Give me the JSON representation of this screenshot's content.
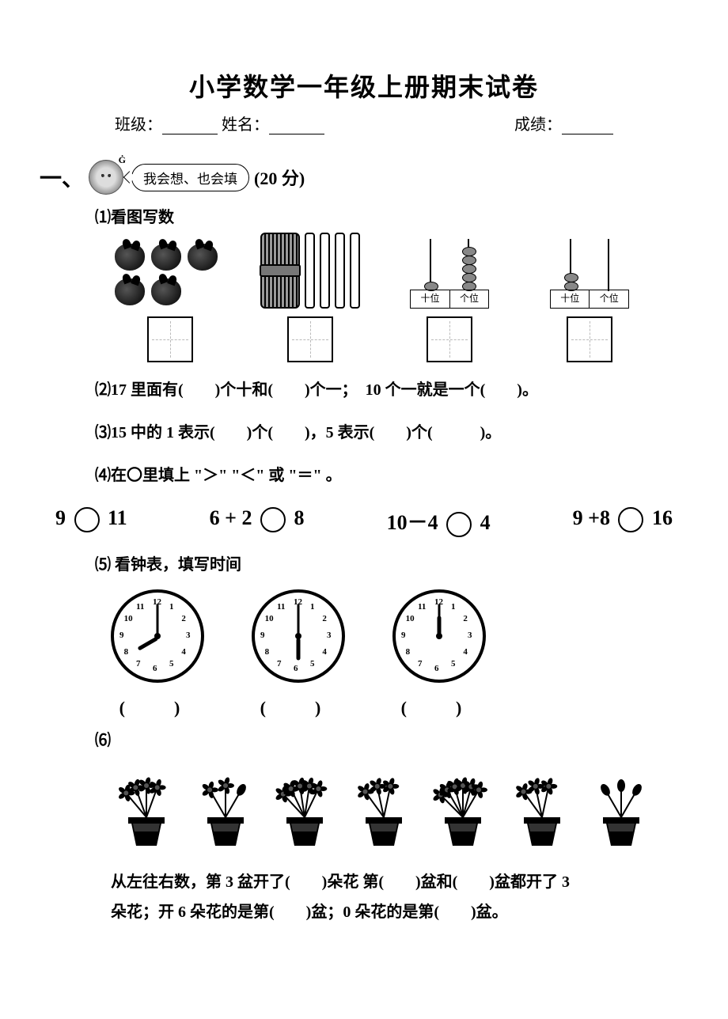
{
  "title": "小学数学一年级上册期末试卷",
  "meta": {
    "class_label": "班级：",
    "name_label": "姓名：",
    "score_label": "成绩："
  },
  "section1": {
    "num": "一、",
    "bubble": "我会想、也会填",
    "points": "(20 分)"
  },
  "q1": {
    "label": "⑴看图写数",
    "abacus_labels": {
      "tens": "十位",
      "ones": "个位"
    }
  },
  "q2": "⑵17 里面有(　　)个十和(　　)个一；　10 个一就是一个(　　)。",
  "q3": "⑶15 中的 1 表示(　　)个(　　)，5 表示(　　)个(　　　)。",
  "q4": {
    "label": "⑷在〇里填上 \"＞\" \"＜\" 或 \"＝\" 。",
    "items": [
      "9 〇 11",
      "6 + 2 〇 8",
      "10－4 〇 4",
      "9 +8 〇 16"
    ],
    "e1a": "9",
    "e1b": "11",
    "e2a": "6 + 2",
    "e2b": "8",
    "e3a": "10－4",
    "e3b": "4",
    "e4a": "9 +8",
    "e4b": "16"
  },
  "q5": {
    "label": "⑸ 看钟表，填写时间",
    "clocks": [
      {
        "hour_angle": 150,
        "minute_angle": -90
      },
      {
        "hour_angle": 90,
        "minute_angle": -90
      },
      {
        "hour_angle": -90,
        "minute_angle": -90
      }
    ],
    "ans": "(　)"
  },
  "q6": {
    "label": "⑹",
    "flowers": [
      4,
      2,
      5,
      3,
      6,
      3,
      0
    ],
    "text1": "从左往右数，第 3 盆开了(　　)朵花  第(　　)盆和(　　)盆都开了 3",
    "text2": "朵花；开 6 朵花的是第(　　)盆；0 朵花的是第(　　)盆。"
  }
}
